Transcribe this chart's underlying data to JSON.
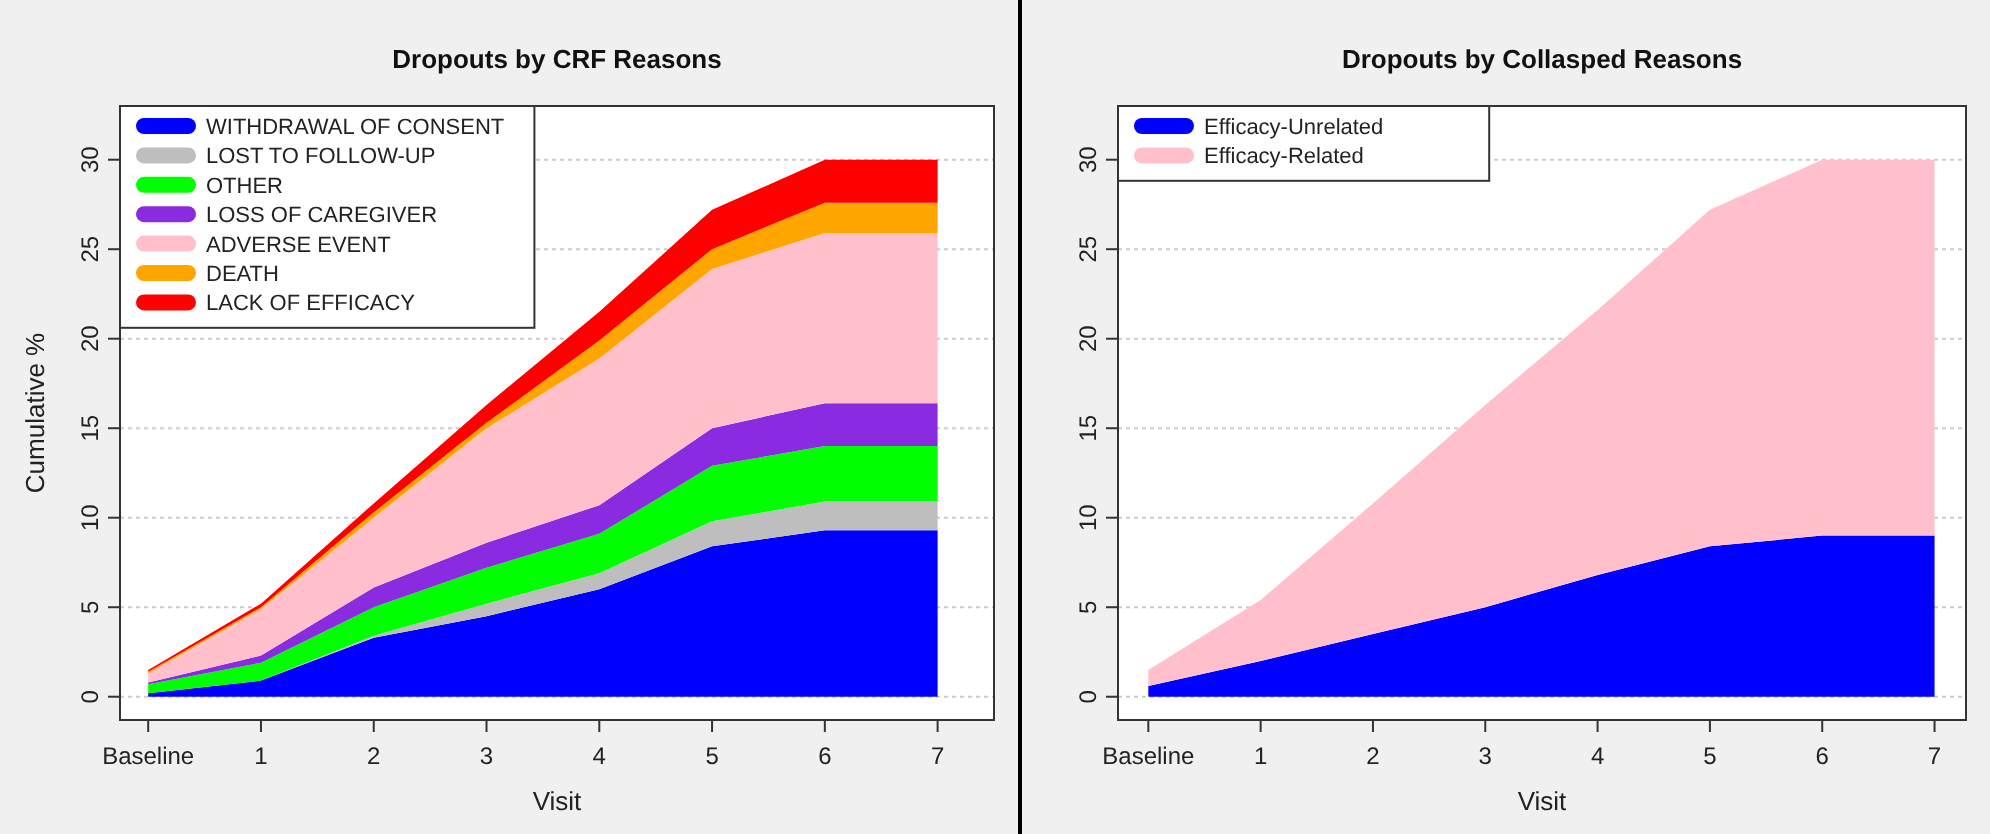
{
  "chart_data": [
    {
      "type": "area",
      "stacked": true,
      "title": "Dropouts by CRF Reasons",
      "xlabel": "Visit",
      "ylabel": "Cumulative %",
      "x": [
        0,
        1,
        2,
        3,
        4,
        5,
        6,
        7
      ],
      "xlim": [
        -0.25,
        7.5
      ],
      "xticks": [
        {
          "value": 0,
          "label": "Baseline"
        },
        1,
        2,
        3,
        4,
        5,
        6,
        7
      ],
      "ylim": [
        -1.3,
        33
      ],
      "yticks": [
        0,
        5,
        10,
        15,
        20,
        25,
        30
      ],
      "grid": "y",
      "legend": "top left",
      "series": [
        {
          "name": "WITHDRAWAL OF CONSENT",
          "color": "#0000ff",
          "values": [
            0.2,
            0.9,
            3.3,
            4.5,
            6.0,
            8.4,
            9.3,
            9.3
          ]
        },
        {
          "name": "LOST TO FOLLOW-UP",
          "color": "#bebebe",
          "values": [
            0,
            0,
            0.1,
            0.7,
            0.9,
            1.4,
            1.6,
            1.6
          ]
        },
        {
          "name": "OTHER",
          "color": "#00ff00",
          "values": [
            0.5,
            1.0,
            1.6,
            2.0,
            2.2,
            3.1,
            3.1,
            3.1
          ]
        },
        {
          "name": "LOSS OF CAREGIVER",
          "color": "#8a2be2",
          "values": [
            0.1,
            0.4,
            1.1,
            1.4,
            1.6,
            2.1,
            2.4,
            2.4
          ]
        },
        {
          "name": "ADVERSE EVENT",
          "color": "#ffc0cb",
          "values": [
            0.5,
            2.6,
            3.9,
            6.4,
            8.2,
            8.9,
            9.5,
            9.5
          ]
        },
        {
          "name": "DEATH",
          "color": "#ffa500",
          "values": [
            0.1,
            0.1,
            0.3,
            0.3,
            1.0,
            1.1,
            1.7,
            1.7
          ]
        },
        {
          "name": "LACK OF EFFICACY",
          "color": "#ff0000",
          "values": [
            0.1,
            0.2,
            0.5,
            1.0,
            1.6,
            2.2,
            2.4,
            2.4
          ]
        }
      ]
    },
    {
      "type": "area",
      "stacked": true,
      "title": "Dropouts by Collasped Reasons",
      "xlabel": "Visit",
      "x": [
        0,
        1,
        2,
        3,
        4,
        5,
        6,
        7
      ],
      "xlim": [
        -0.27,
        7.28
      ],
      "xticks": [
        {
          "value": 0,
          "label": "Baseline"
        },
        1,
        2,
        3,
        4,
        5,
        6,
        7
      ],
      "ylim": [
        -1.3,
        33
      ],
      "yticks": [
        0,
        5,
        10,
        15,
        20,
        25,
        30
      ],
      "grid": "y",
      "legend": "top left",
      "series": [
        {
          "name": "Efficacy-Unrelated",
          "color": "#0000ff",
          "values": [
            0.6,
            2.0,
            3.5,
            5.0,
            6.8,
            8.4,
            9.0,
            9.0
          ]
        },
        {
          "name": "Efficacy-Related",
          "color": "#ffc0cb",
          "values": [
            0.9,
            3.4,
            7.3,
            11.3,
            14.8,
            18.8,
            21.0,
            21.0
          ]
        }
      ]
    }
  ]
}
